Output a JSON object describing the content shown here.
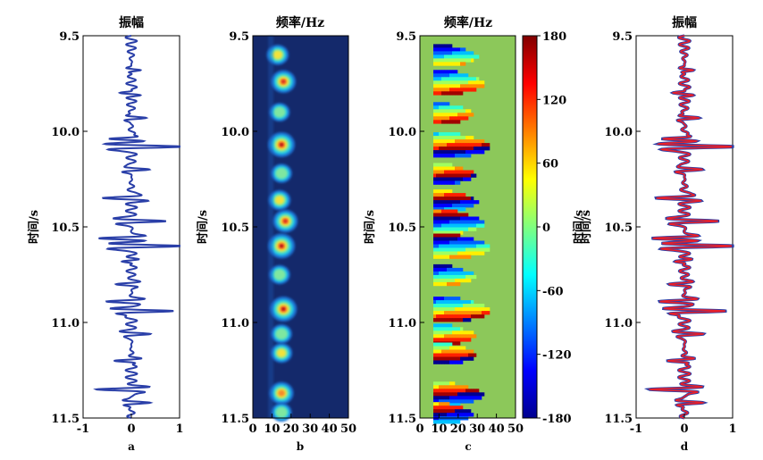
{
  "chart_data": [
    {
      "id": "a",
      "type": "line",
      "title": "振幅",
      "sublabel": "a",
      "ylabel": "时间/s",
      "xlim": [
        -1,
        1
      ],
      "ylim": [
        9.5,
        11.5
      ],
      "x_ticks": [
        "-1",
        "0",
        "1"
      ],
      "y_ticks": [
        "9.5",
        "10.0",
        "10.5",
        "11.0",
        "11.5"
      ],
      "series": [
        {
          "color": "#2a3fa8",
          "events": [
            {
              "t": 9.68,
              "a": 0.22,
              "f": 32
            },
            {
              "t": 9.8,
              "a": -0.3,
              "f": 30
            },
            {
              "t": 9.93,
              "a": 0.32,
              "f": 30
            },
            {
              "t": 10.04,
              "a": -0.5,
              "f": 30
            },
            {
              "t": 10.08,
              "a": 1.0,
              "f": 28
            },
            {
              "t": 10.2,
              "a": 0.35,
              "f": 30
            },
            {
              "t": 10.35,
              "a": -0.55,
              "f": 28
            },
            {
              "t": 10.47,
              "a": 0.65,
              "f": 28
            },
            {
              "t": 10.56,
              "a": -0.7,
              "f": 28
            },
            {
              "t": 10.6,
              "a": 1.0,
              "f": 28
            },
            {
              "t": 10.68,
              "a": -0.28,
              "f": 30
            },
            {
              "t": 10.8,
              "a": -0.3,
              "f": 28
            },
            {
              "t": 10.89,
              "a": -0.5,
              "f": 28
            },
            {
              "t": 10.94,
              "a": 0.95,
              "f": 28
            },
            {
              "t": 11.06,
              "a": 0.35,
              "f": 30
            },
            {
              "t": 11.2,
              "a": -0.4,
              "f": 30
            },
            {
              "t": 11.35,
              "a": -0.75,
              "f": 28
            },
            {
              "t": 11.42,
              "a": 0.4,
              "f": 30
            }
          ]
        }
      ]
    },
    {
      "id": "b",
      "type": "heatmap",
      "title": "频率/Hz",
      "sublabel": "b",
      "ylabel": "时间/s",
      "xlim": [
        0,
        50
      ],
      "ylim": [
        9.5,
        11.5
      ],
      "x_ticks": [
        "0",
        "10",
        "20",
        "30",
        "40",
        "50"
      ],
      "y_ticks": [
        "9.5",
        "10.0",
        "10.5",
        "11.0",
        "11.5"
      ],
      "blobs": [
        {
          "t": 9.6,
          "f": 13,
          "a": 0.55
        },
        {
          "t": 9.74,
          "f": 16,
          "a": 0.8
        },
        {
          "t": 9.9,
          "f": 14,
          "a": 0.4
        },
        {
          "t": 10.07,
          "f": 15,
          "a": 1.0
        },
        {
          "t": 10.22,
          "f": 15,
          "a": 0.45
        },
        {
          "t": 10.36,
          "f": 14,
          "a": 0.55
        },
        {
          "t": 10.47,
          "f": 17,
          "a": 0.8
        },
        {
          "t": 10.6,
          "f": 15,
          "a": 1.0
        },
        {
          "t": 10.75,
          "f": 14,
          "a": 0.45
        },
        {
          "t": 10.93,
          "f": 16,
          "a": 1.0
        },
        {
          "t": 11.06,
          "f": 15,
          "a": 0.45
        },
        {
          "t": 11.16,
          "f": 15,
          "a": 0.5
        },
        {
          "t": 11.37,
          "f": 15,
          "a": 0.75
        },
        {
          "t": 11.47,
          "f": 15,
          "a": 0.4
        }
      ]
    },
    {
      "id": "c",
      "type": "heatmap",
      "title": "频率/Hz",
      "sublabel": "c",
      "ylabel": "时间/s",
      "xlim": [
        0,
        50
      ],
      "ylim": [
        9.5,
        11.5
      ],
      "x_ticks": [
        "0",
        "10",
        "20",
        "30",
        "40",
        "50"
      ],
      "y_ticks": [
        "9.5",
        "10.0",
        "10.5",
        "11.0",
        "11.5"
      ],
      "colorbar": {
        "range": [
          -180,
          180
        ],
        "ticks": [
          "180",
          "120",
          "60",
          "0",
          "-60",
          "-120",
          "-180"
        ]
      }
    },
    {
      "id": "d",
      "type": "line",
      "title": "振幅",
      "sublabel": "d",
      "ylabel": "时间/s",
      "xlim": [
        -1,
        1
      ],
      "ylim": [
        9.5,
        11.5
      ],
      "x_ticks": [
        "-1",
        "0",
        "1"
      ],
      "y_ticks": [
        "9.5",
        "10.0",
        "10.5",
        "11.0",
        "11.5"
      ],
      "series": [
        {
          "color": "#2a3fa8",
          "role": "original"
        },
        {
          "color": "#e8202a",
          "role": "reconstructed"
        }
      ]
    }
  ]
}
